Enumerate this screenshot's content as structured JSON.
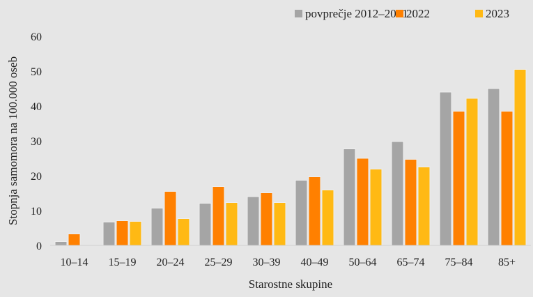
{
  "chart_data": {
    "type": "bar",
    "title": "",
    "xlabel": "Starostne skupine",
    "ylabel": "Stopnja samomora na 100.000 oseb",
    "ylim": [
      0,
      60
    ],
    "yticks": [
      "0",
      "10",
      "20",
      "30",
      "40",
      "50",
      "60"
    ],
    "grid": false,
    "legend_position": "top-right",
    "categories": [
      "10–14",
      "15–19",
      "20–24",
      "25–29",
      "30–39",
      "40–49",
      "50–64",
      "65–74",
      "75–84",
      "85+"
    ],
    "series": [
      {
        "name": "povprečje 2012–2021",
        "color": "#a5a5a5",
        "values": [
          1.1,
          6.7,
          10.7,
          12.1,
          14.0,
          18.7,
          27.7,
          29.8,
          44.0,
          45.0
        ]
      },
      {
        "name": "2022",
        "color": "#ff8000",
        "values": [
          3.3,
          7.1,
          15.5,
          16.9,
          15.1,
          19.7,
          25.0,
          24.7,
          38.5,
          38.5
        ]
      },
      {
        "name": "2023",
        "color": "#ffb914",
        "values": [
          0,
          6.9,
          7.7,
          12.3,
          12.3,
          15.9,
          21.9,
          22.5,
          42.2,
          50.5
        ]
      }
    ]
  }
}
